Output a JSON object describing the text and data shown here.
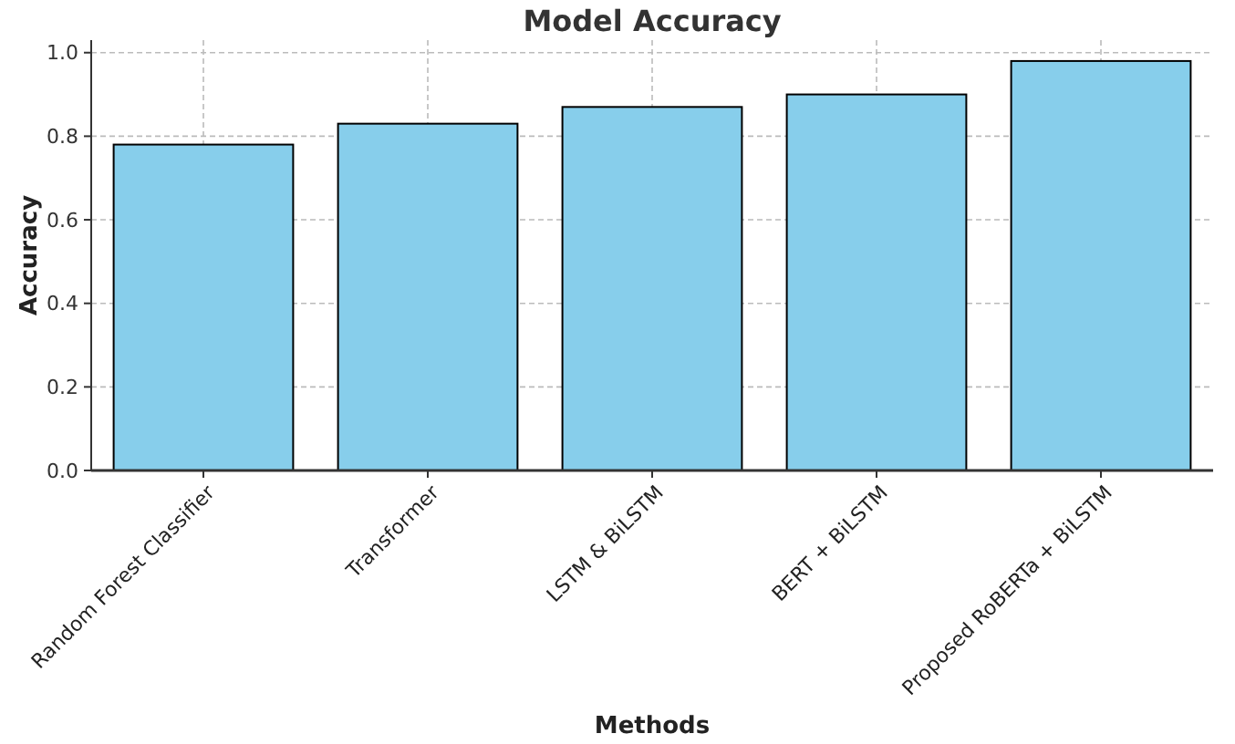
{
  "chart_data": {
    "type": "bar",
    "title": "Model Accuracy",
    "xlabel": "Methods",
    "ylabel": "Accuracy",
    "categories": [
      "Random Forest Classifier",
      "Transformer",
      "LSTM & BiLSTM",
      "BERT + BiLSTM",
      "Proposed RoBERTa + BiLSTM"
    ],
    "values": [
      0.78,
      0.83,
      0.87,
      0.9,
      0.98
    ],
    "color": "#87ceeb",
    "ylim": [
      0,
      1.03
    ],
    "yticks": [
      {
        "value": 0,
        "label": "0.0"
      },
      {
        "value": 0.2,
        "label": "0.2"
      },
      {
        "value": 0.4,
        "label": "0.4"
      },
      {
        "value": 0.6,
        "label": "0.6"
      },
      {
        "value": 0.8,
        "label": "0.8"
      },
      {
        "value": 1,
        "label": "1.0"
      }
    ],
    "grid": true
  }
}
